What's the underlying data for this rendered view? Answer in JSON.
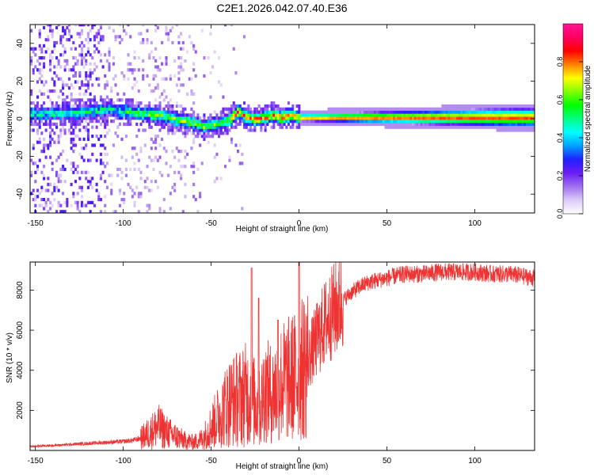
{
  "figure": {
    "title": "C2E1.2026.042.07.40.E36"
  },
  "chart_data": [
    {
      "type": "heatmap",
      "name": "spectrogram",
      "title": "C2E1.2026.042.07.40.E36",
      "xlabel": "Height of straight line (km)",
      "ylabel": "Frequency (Hz)",
      "xlim": [
        -153,
        134
      ],
      "ylim": [
        -50,
        50
      ],
      "xticks": [
        -150,
        -100,
        -50,
        0,
        50,
        100
      ],
      "xtick_labels": [
        "-150",
        "-100",
        "-50",
        "0",
        "50",
        "100"
      ],
      "yticks": [
        -40,
        -20,
        0,
        20,
        40
      ],
      "ytick_labels": [
        "-40",
        "-20",
        "0",
        "20",
        "40"
      ],
      "ridge": {
        "description_points_x": [
          -140,
          -120,
          -110,
          -100,
          -90,
          -80,
          -70,
          -60,
          -55,
          -50,
          -45,
          -40,
          -35,
          -30,
          -25,
          -20,
          -15,
          -10,
          -5,
          0,
          20,
          50,
          100,
          134
        ],
        "description_points_y": [
          2,
          3,
          4,
          3,
          2,
          1,
          -1,
          -3,
          -5,
          -4,
          -3,
          -1,
          3,
          0,
          -1,
          0,
          1,
          0,
          1,
          0,
          0,
          0,
          0,
          0
        ]
      },
      "colorbar": {
        "label": "Normalized spectral amplitude",
        "range": [
          0,
          1
        ],
        "ticks": [
          0.0,
          0.2,
          0.4,
          0.6,
          0.8
        ],
        "tick_labels": [
          "0.0",
          "0.2",
          "0.4",
          "0.6",
          "0.8"
        ],
        "colors": [
          "#ffffff",
          "#dccbf7",
          "#a070ee",
          "#6a1ef5",
          "#2020ff",
          "#00a0ff",
          "#00ffff",
          "#00ff80",
          "#00ff00",
          "#80ff00",
          "#ffff00",
          "#ff8000",
          "#ff0000",
          "#ff0060",
          "#ff1493"
        ]
      }
    },
    {
      "type": "line",
      "name": "snr",
      "xlabel": "Height of straight line (km)",
      "ylabel": "SNR (10 * v/v)",
      "xlim": [
        -153,
        134
      ],
      "ylim": [
        0,
        9400
      ],
      "xticks": [
        -150,
        -100,
        -50,
        0,
        50,
        100
      ],
      "xtick_labels": [
        "-150",
        "-100",
        "-50",
        "0",
        "50",
        "100"
      ],
      "yticks": [
        2000,
        4000,
        6000,
        8000
      ],
      "ytick_labels": [
        "2000",
        "4000",
        "6000",
        "8000"
      ],
      "color": "#ee3333",
      "series": [
        {
          "name": "SNR",
          "x": [
            -153,
            -140,
            -130,
            -120,
            -110,
            -100,
            -95,
            -90,
            -85,
            -80,
            -75,
            -70,
            -65,
            -60,
            -55,
            -50,
            -45,
            -40,
            -35,
            -30,
            -25,
            -22,
            -20,
            -15,
            -10,
            -5,
            0,
            5,
            10,
            15,
            20,
            25,
            30,
            35,
            40,
            50,
            60,
            70,
            80,
            90,
            100,
            110,
            120,
            134
          ],
          "y": [
            200,
            250,
            300,
            350,
            400,
            450,
            500,
            600,
            900,
            1200,
            900,
            700,
            500,
            400,
            600,
            1200,
            1800,
            2400,
            2600,
            2800,
            2400,
            2000,
            3000,
            2800,
            3400,
            3600,
            3800,
            4500,
            5500,
            6400,
            7000,
            7500,
            7900,
            8200,
            8400,
            8600,
            8800,
            8800,
            8900,
            8900,
            8900,
            8800,
            8800,
            8600
          ],
          "spikes": [
            {
              "x": -27,
              "y": 9100
            },
            {
              "x": -23,
              "y": 7600
            },
            {
              "x": 0,
              "y": 9400
            },
            {
              "x": -12,
              "y": 6500
            }
          ]
        }
      ]
    }
  ]
}
